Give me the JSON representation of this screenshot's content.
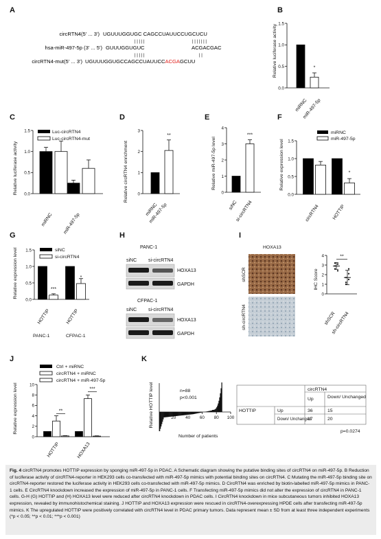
{
  "colors": {
    "black_bar": "#000000",
    "white_bar": "#ffffff",
    "accent_red": "#e0201c",
    "ihc_brown": "#8a5a3a",
    "ihc_blue": "#b8c4cc",
    "caption_bg": "#ececec"
  },
  "panels": {
    "A": "A",
    "B": "B",
    "C": "C",
    "D": "D",
    "E": "E",
    "F": "F",
    "G": "G",
    "H": "H",
    "I": "I",
    "J": "J",
    "K": "K"
  },
  "panel_a": {
    "row1_label": "circRTN4(5' ... 3')",
    "row1_seq": "UGUUUGGUGC CAGCCUAUUCCUGCUCU",
    "row1_bars_left": "| | | | |",
    "row1_bars_right": "| | | | | | |",
    "row2_label": "hsa-miR-497-5p (3' ... 5')",
    "row2_seq_left": "GUUUGGUGUC",
    "row2_seq_right": "ACGACGAC",
    "row2_bars_left": "| | | | |",
    "row2_bars_right": "| |",
    "row3_label": "circRTN4-mut(5' ... 3')",
    "row3_seq_a": "UGUUUGGUGCCAGCCUAUUCC",
    "row3_seq_red": "ACGA",
    "row3_seq_b": "GCUU"
  },
  "common": {
    "miRNC": "miRNC",
    "miR497": "miR-497-5p",
    "siNC": "siNC",
    "sicirc": "si-circRTN4",
    "circRTN4": "circRTN4",
    "HOTTIP": "HOTTIP",
    "HOXA13": "HOXA13",
    "sig1": "*",
    "sig2": "**",
    "sig3": "***"
  },
  "panel_b": {
    "ylabel": "Relative luciferase activity"
  },
  "panel_c": {
    "ylabel": "Relative luciferase activity",
    "legend1": "Luc-circRTN4",
    "legend2": "Luc-circRTN4-mut"
  },
  "panel_d": {
    "ylabel": "Relative circRTN4 enrichment"
  },
  "panel_e": {
    "ylabel": "Relative miR-497-5p level"
  },
  "panel_f": {
    "ylabel": "Relative expression level"
  },
  "panel_g": {
    "ylabel": "Relative expression level",
    "panc": "PANC-1",
    "cfpac": "CFPAC-1"
  },
  "panel_h": {
    "title1": "PANC-1",
    "title2": "CFPAC-1",
    "lane1": "siNC",
    "lane2": "si-circRTN4",
    "gapdh": "GAPDH"
  },
  "panel_i": {
    "title": "HOXA13",
    "row1": "shSCR",
    "row2": "sh-circRTN4",
    "ylabel": "IHC Score",
    "x1": "shSCR",
    "x2": "sh-circRTN4"
  },
  "panel_j": {
    "ylabel": "Relative expression level",
    "legend1": "Ctrl + miRNC",
    "legend2": "circRTN4 + miRNC",
    "legend3": "circRTN4 + miR-497-5p"
  },
  "panel_k": {
    "ylabel": "Relative HOTTIP level",
    "n": "n=88",
    "p": "p<0.001",
    "xlabel": "Number of patients",
    "t_header": "circRTN4",
    "t_up": "Up",
    "t_down": "Down/ Unchanged",
    "t_hottip": "HOTTIP",
    "t_r_up": "Up",
    "t_r_down": "Down/ Unchanged",
    "v11": "36",
    "v12": "15",
    "v21": "17",
    "v22": "20",
    "pval": "p=0.0274"
  },
  "chart_data": [
    {
      "panel": "B",
      "type": "bar",
      "categories": [
        "miRNC",
        "miR-497-5p"
      ],
      "values": [
        1.0,
        0.25
      ],
      "ylabel": "Relative luciferase activity",
      "ylim": [
        0,
        1.5
      ],
      "significance": [
        "",
        "*"
      ]
    },
    {
      "panel": "C",
      "type": "bar",
      "categories": [
        "miRNC",
        "miR-497-5p"
      ],
      "series": [
        {
          "name": "Luc-circRTN4",
          "values": [
            1.0,
            0.25
          ]
        },
        {
          "name": "Luc-circRTN4-mut",
          "values": [
            1.0,
            0.6
          ]
        }
      ],
      "ylabel": "Relative luciferase activity",
      "ylim": [
        0,
        1.5
      ]
    },
    {
      "panel": "D",
      "type": "bar",
      "categories": [
        "miRNC",
        "miR-497-5p"
      ],
      "values": [
        1.0,
        2.05
      ],
      "ylabel": "Relative circRTN4 enrichment",
      "ylim": [
        0,
        3
      ],
      "significance": [
        "",
        "**"
      ]
    },
    {
      "panel": "E",
      "type": "bar",
      "categories": [
        "siNC",
        "si-circRTN4"
      ],
      "values": [
        1.0,
        3.0
      ],
      "ylabel": "Relative miR-497-5p level",
      "ylim": [
        0,
        4
      ],
      "significance": [
        "",
        "***"
      ]
    },
    {
      "panel": "F",
      "type": "bar",
      "categories": [
        "circRTN4",
        "HOTTIP"
      ],
      "series": [
        {
          "name": "miRNC",
          "values": [
            1.0,
            1.0
          ]
        },
        {
          "name": "miR-497-5p",
          "values": [
            0.82,
            0.32
          ]
        }
      ],
      "ylabel": "Relative expression level",
      "ylim": [
        0,
        1.5
      ]
    },
    {
      "panel": "G",
      "type": "bar",
      "categories": [
        "HOTTIP (PANC-1)",
        "HOTTIP (CFPAC-1)"
      ],
      "series": [
        {
          "name": "siNC",
          "values": [
            1.0,
            1.0
          ]
        },
        {
          "name": "si-circRTN4",
          "values": [
            0.13,
            0.48
          ]
        }
      ],
      "ylabel": "Relative expression level",
      "ylim": [
        0,
        1.5
      ]
    },
    {
      "panel": "I",
      "type": "scatter",
      "categories": [
        "shSCR",
        "sh-circRTN4"
      ],
      "means": [
        2.9,
        1.7
      ],
      "ylabel": "IHC Score",
      "ylim": [
        0,
        4
      ],
      "significance": "**"
    },
    {
      "panel": "J",
      "type": "bar",
      "categories": [
        "HOTTIP",
        "HOXA13"
      ],
      "series": [
        {
          "name": "Ctrl + miRNC",
          "values": [
            1.0,
            1.0
          ]
        },
        {
          "name": "circRTN4 + miRNC",
          "values": [
            3.0,
            7.3
          ]
        },
        {
          "name": "circRTN4 + miR-497-5p",
          "values": [
            0.15,
            0.12
          ]
        }
      ],
      "ylabel": "Relative expression level",
      "ylim": [
        0,
        10
      ]
    },
    {
      "panel": "K",
      "type": "area",
      "n": 88,
      "ylabel": "Relative HOTTIP level",
      "xlabel": "Number of patients",
      "xlim": [
        0,
        100
      ],
      "xticks": [
        20,
        40,
        60,
        80,
        100
      ]
    }
  ],
  "caption": {
    "lead": "Fig. 4",
    "body": " circRTN4 promotes HOTTIP expression by sponging miR-497-5p in PDAC. A Schematic diagram showing the putative binding sites of circRTN4 on miR-497-5p. B Reduction of luciferase activity of circRTN4-reporter in HEK293 cells co-transfected with miR-497-5p mimics with potential binding sites on circRTN4. C Mutating the miR-497-5p binding site on circRTN4-reporter restored the luciferase activity in HEK293 cells co-transfected with miR-497-5p mimics. D CircRTN4 was enriched by biotin-labelled miR-497-5p mimics in PANC-1 cells. E CircRTN4 knockdown increased the expression of miR-497-5p in PANC-1 cells. F Transfecting miR-497-5p mimics did not alter the expression of circRTN4 in PANC-1 cells. G-H (G) HOTTIP and (H) HOXA13 level were reduced after circRTN4 knockdown in PDAC cells. I CircRTN4 knockdown in mice subcutaneous tumors inhibited HOXA13 expression, revealed by immunohistochemical staining. J HOTTIP and HOXA13 expression were rescued in circRTN4-overexpressing HPDE cells after transfecting miR-497-5p mimics. K The upregulated HOTTIP were positively correlated with circRTN4 level in PDAC primary tumors. Data represent mean ± SD from at least three independent experiments (*p < 0.05; **p < 0.01; ***p < 0.001)"
  }
}
